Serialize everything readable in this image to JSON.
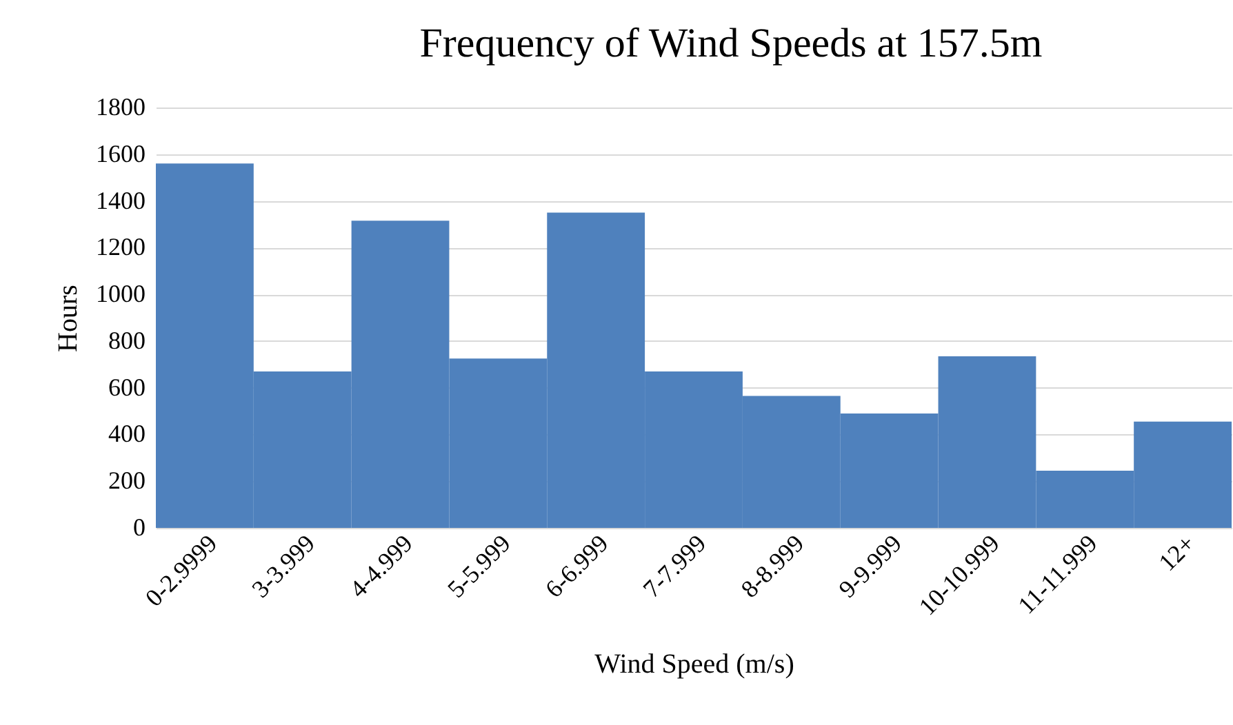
{
  "chart_data": {
    "type": "bar",
    "title": "Frequency of Wind Speeds at 157.5m",
    "xlabel": "Wind Speed (m/s)",
    "ylabel": "Hours",
    "categories": [
      "0-2.9999",
      "3-3.999",
      "4-4.999",
      "5-5.999",
      "6-6.999",
      "7-7.999",
      "8-8.999",
      "9-9.999",
      "10-10.999",
      "11-11.999",
      "12+"
    ],
    "values": [
      1560,
      670,
      1315,
      725,
      1350,
      670,
      565,
      490,
      735,
      245,
      455
    ],
    "color": "#4f81bd",
    "ylim": [
      0,
      1800
    ],
    "yticks": [
      0,
      200,
      400,
      600,
      800,
      1000,
      1200,
      1400,
      1600,
      1800
    ],
    "grid": "y"
  }
}
